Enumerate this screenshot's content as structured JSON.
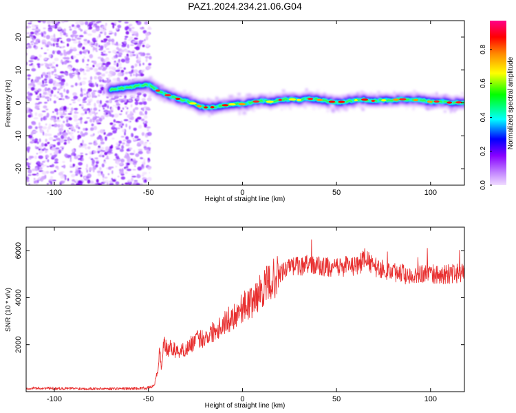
{
  "chart_data": [
    {
      "type": "heatmap",
      "title": "PAZ1.2024.234.21.06.G04",
      "xlabel": "Height of straight line (km)",
      "ylabel": "Frequency (Hz)",
      "xlim": [
        -115,
        118
      ],
      "ylim": [
        -25,
        25
      ],
      "xticks": [
        -100,
        -50,
        0,
        50,
        100
      ],
      "yticks": [
        -20,
        -10,
        0,
        10,
        20
      ],
      "grid": false,
      "colorbar": {
        "label": "Normalized spectral amplitude",
        "range": [
          0,
          0.97
        ],
        "ticks": [
          0.0,
          0.2,
          0.4,
          0.6,
          0.8
        ],
        "tick_labels": [
          "0.0",
          "0.2",
          "0.4",
          "0.6",
          "0.8"
        ],
        "colormap": [
          "#e8c8f8",
          "#8800ff",
          "#0000ff",
          "#00ffff",
          "#00ff00",
          "#ffff00",
          "#ff8800",
          "#ff0000",
          "#ff0088"
        ]
      },
      "noise_region": {
        "x": [
          -115,
          -49
        ],
        "y": [
          -25,
          25
        ]
      },
      "ridge": {
        "x": [
          -70,
          -62,
          -55,
          -50,
          -47,
          -43,
          -38,
          -33,
          -28,
          -23,
          -18,
          -13,
          -8,
          -3,
          0,
          5,
          10,
          15,
          20,
          25,
          30,
          35,
          40,
          45,
          50,
          55,
          60,
          65,
          70,
          75,
          80,
          85,
          90,
          95,
          100,
          105,
          110,
          118
        ],
        "y": [
          4.0,
          4.6,
          5.2,
          5.6,
          4.5,
          3.0,
          2.0,
          1.0,
          0.3,
          -1.0,
          -1.5,
          -1.0,
          -0.6,
          -0.3,
          -0.4,
          0.2,
          0.7,
          0.3,
          0.9,
          1.1,
          0.9,
          1.3,
          1.0,
          0.5,
          0.2,
          0.4,
          0.8,
          1.0,
          0.6,
          0.8,
          0.9,
          1.1,
          0.8,
          0.9,
          0.3,
          0.5,
          0.1,
          0.2
        ]
      }
    },
    {
      "type": "line",
      "xlabel": "Height of straight line (km)",
      "ylabel": "SNR (10 * v/v)",
      "xlim": [
        -115,
        118
      ],
      "ylim": [
        0,
        7000
      ],
      "xticks": [
        -100,
        -50,
        0,
        50,
        100
      ],
      "yticks": [
        2000,
        4000,
        6000
      ],
      "grid": false,
      "color": "#e83030",
      "series": [
        {
          "x": [
            -115,
            -100,
            -80,
            -60,
            -50,
            -47,
            -45,
            -44,
            -43,
            -42,
            -40,
            -38,
            -35,
            -30,
            -25,
            -20,
            -15,
            -10,
            -5,
            0,
            5,
            10,
            15,
            20,
            25,
            30,
            35,
            40,
            45,
            50,
            55,
            60,
            65,
            70,
            75,
            80,
            85,
            90,
            95,
            100,
            105,
            110,
            118
          ],
          "y": [
            150,
            140,
            130,
            130,
            160,
            250,
            900,
            1800,
            900,
            2200,
            1700,
            1900,
            1700,
            1800,
            2200,
            2300,
            2600,
            2900,
            3200,
            3600,
            3800,
            4300,
            4700,
            5000,
            5300,
            5350,
            5400,
            5350,
            5300,
            5250,
            5350,
            5300,
            5700,
            5300,
            5200,
            5100,
            5050,
            5000,
            5050,
            5000,
            4950,
            5000,
            5050
          ]
        }
      ]
    }
  ]
}
